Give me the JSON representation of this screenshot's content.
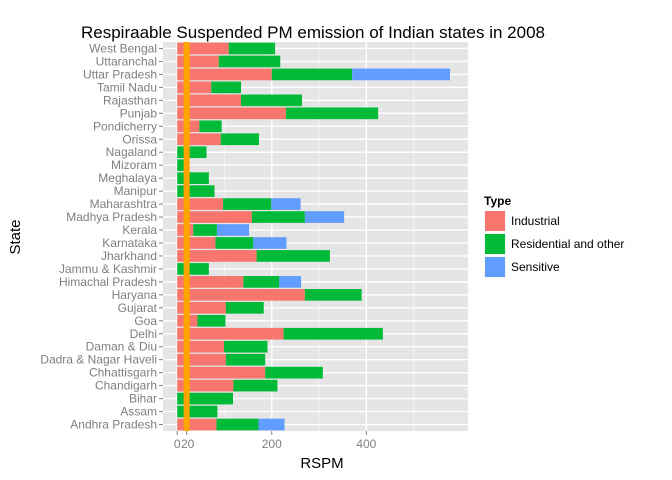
{
  "chart_data": {
    "type": "bar",
    "orientation": "horizontal",
    "stacked": true,
    "title": "Respiraable Suspended PM emission of Indian states in 2008",
    "xlabel": "RSPM",
    "ylabel": "State",
    "xlim": [
      -30,
      615
    ],
    "x_ticks": [
      0,
      200,
      400
    ],
    "reference_line": {
      "value": 20,
      "color": "#FFA500"
    },
    "x_tick_overlay_label": "20",
    "grid": true,
    "legend_position": "right",
    "categories": [
      "West Bengal",
      "Uttaranchal",
      "Uttar Pradesh",
      "Tamil Nadu",
      "Rajasthan",
      "Punjab",
      "Pondicherry",
      "Orissa",
      "Nagaland",
      "Mizoram",
      "Meghalaya",
      "Manipur",
      "Maharashtra",
      "Madhya Pradesh",
      "Kerala",
      "Karnataka",
      "Jharkhand",
      "Jammu & Kashmir",
      "Himachal Pradesh",
      "Haryana",
      "Gujarat",
      "Goa",
      "Delhi",
      "Daman & Diu",
      "Dadra & Nagar Haveli",
      "Chhattisgarh",
      "Chandigarh",
      "Bihar",
      "Assam",
      "Andhra Pradesh"
    ],
    "series": [
      {
        "name": "Industrial",
        "color": "#F8766D",
        "values": [
          109,
          88,
          200,
          72,
          135,
          230,
          47,
          92,
          0,
          0,
          0,
          0,
          97,
          158,
          34,
          81,
          168,
          0,
          140,
          270,
          103,
          43,
          225,
          99,
          103,
          186,
          119,
          0,
          0,
          83
        ]
      },
      {
        "name": "Residential and other",
        "color": "#00BA38",
        "values": [
          98,
          130,
          170,
          63,
          129,
          195,
          47,
          81,
          62,
          25,
          67,
          79,
          102,
          112,
          50,
          80,
          155,
          67,
          76,
          120,
          80,
          59,
          210,
          92,
          83,
          122,
          93,
          118,
          85,
          89
        ]
      },
      {
        "name": "Sensitive",
        "color": "#619CFF",
        "values": [
          0,
          0,
          207,
          0,
          0,
          0,
          0,
          0,
          0,
          0,
          0,
          0,
          62,
          83,
          68,
          70,
          0,
          0,
          46,
          0,
          0,
          0,
          0,
          0,
          0,
          0,
          0,
          0,
          0,
          55
        ]
      }
    ]
  },
  "legend": {
    "title": "Type"
  }
}
